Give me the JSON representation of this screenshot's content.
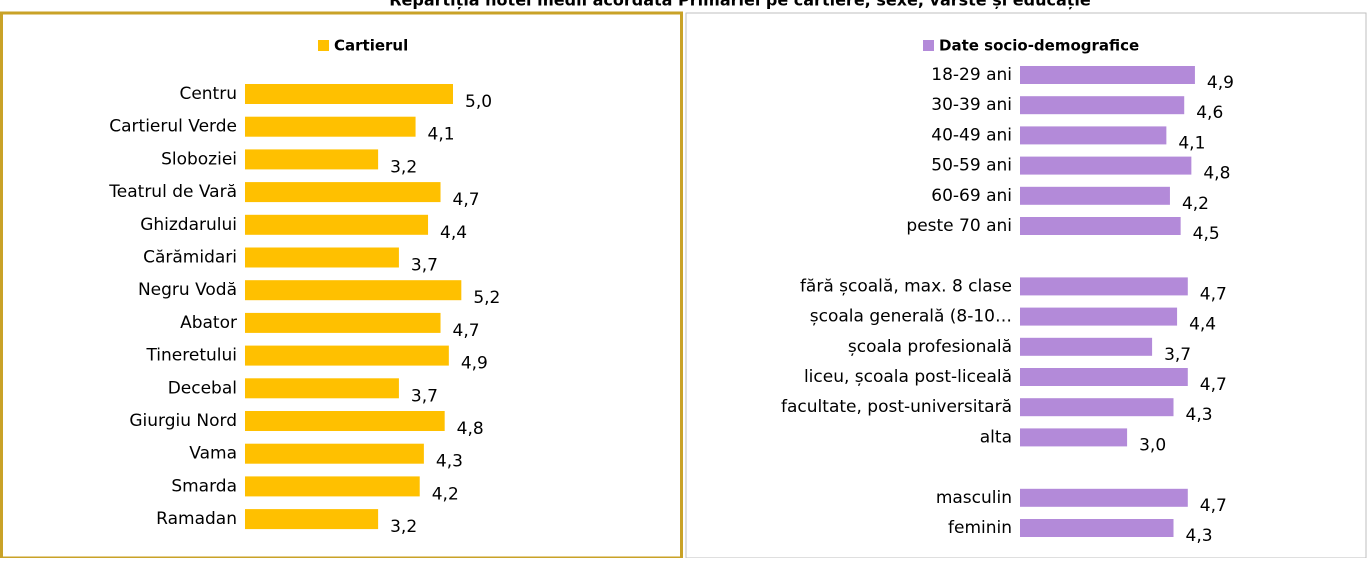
{
  "title": "Repartiția notei medii acordată Primăriei pe cartiere, sexe, vârste și educație",
  "chart_data": [
    {
      "type": "bar",
      "orientation": "horizontal",
      "legend": "Cartierul",
      "color": "#ffc000",
      "categories": [
        "Centru",
        "Cartierul Verde",
        "Sloboziei",
        "Teatrul de Vară",
        "Ghizdarului",
        "Cărămidari",
        "Negru Vodă",
        "Abator",
        "Tineretului",
        "Decebal",
        "Giurgiu Nord",
        "Vama",
        "Smarda",
        "Ramadan"
      ],
      "values": [
        5.0,
        4.1,
        3.2,
        4.7,
        4.4,
        3.7,
        5.2,
        4.7,
        4.9,
        3.7,
        4.8,
        4.3,
        4.2,
        3.2
      ],
      "value_labels": [
        "5,0",
        "4,1",
        "3,2",
        "4,7",
        "4,4",
        "3,7",
        "5,2",
        "4,7",
        "4,9",
        "3,7",
        "4,8",
        "4,3",
        "4,2",
        "3,2"
      ]
    },
    {
      "type": "bar",
      "orientation": "horizontal",
      "legend": "Date socio-demografice",
      "color": "#b38ad9",
      "categories": [
        "18-29 ani",
        "30-39 ani",
        "40-49 ani",
        "50-59 ani",
        "60-69 ani",
        "peste 70 ani",
        null,
        "fără școală, max. 8 clase",
        "școala generală (8-10…",
        "școala profesională",
        "liceu, școala post-liceală",
        "facultate, post-universitară",
        "alta",
        null,
        "masculin",
        "feminin"
      ],
      "values": [
        4.9,
        4.6,
        4.1,
        4.8,
        4.2,
        4.5,
        null,
        4.7,
        4.4,
        3.7,
        4.7,
        4.3,
        3.0,
        null,
        4.7,
        4.3
      ],
      "value_labels": [
        "4,9",
        "4,6",
        "4,1",
        "4,8",
        "4,2",
        "4,5",
        null,
        "4,7",
        "4,4",
        "3,7",
        "4,7",
        "4,3",
        "3,0",
        null,
        "4,7",
        "4,3"
      ]
    }
  ]
}
